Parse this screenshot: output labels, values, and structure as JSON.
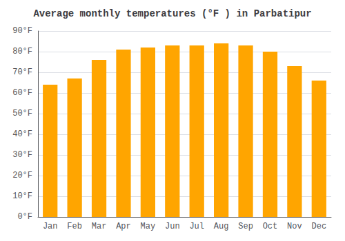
{
  "chart_data": {
    "type": "bar",
    "title": "Average monthly temperatures (°F ) in Parbatipur",
    "categories": [
      "Jan",
      "Feb",
      "Mar",
      "Apr",
      "May",
      "Jun",
      "Jul",
      "Aug",
      "Sep",
      "Oct",
      "Nov",
      "Dec"
    ],
    "values": [
      64,
      67,
      76,
      81,
      82,
      83,
      83,
      84,
      83,
      80,
      73,
      66
    ],
    "color": "#FFA500",
    "ylim": [
      0,
      90
    ],
    "yticks": [
      {
        "value": 0,
        "label": "0°F"
      },
      {
        "value": 10,
        "label": "10°F"
      },
      {
        "value": 20,
        "label": "20°F"
      },
      {
        "value": 30,
        "label": "30°F"
      },
      {
        "value": 40,
        "label": "40°F"
      },
      {
        "value": 50,
        "label": "50°F"
      },
      {
        "value": 60,
        "label": "60°F"
      },
      {
        "value": 70,
        "label": "70°F"
      },
      {
        "value": 80,
        "label": "80°F"
      },
      {
        "value": 90,
        "label": "90°F"
      }
    ],
    "grid": true
  }
}
